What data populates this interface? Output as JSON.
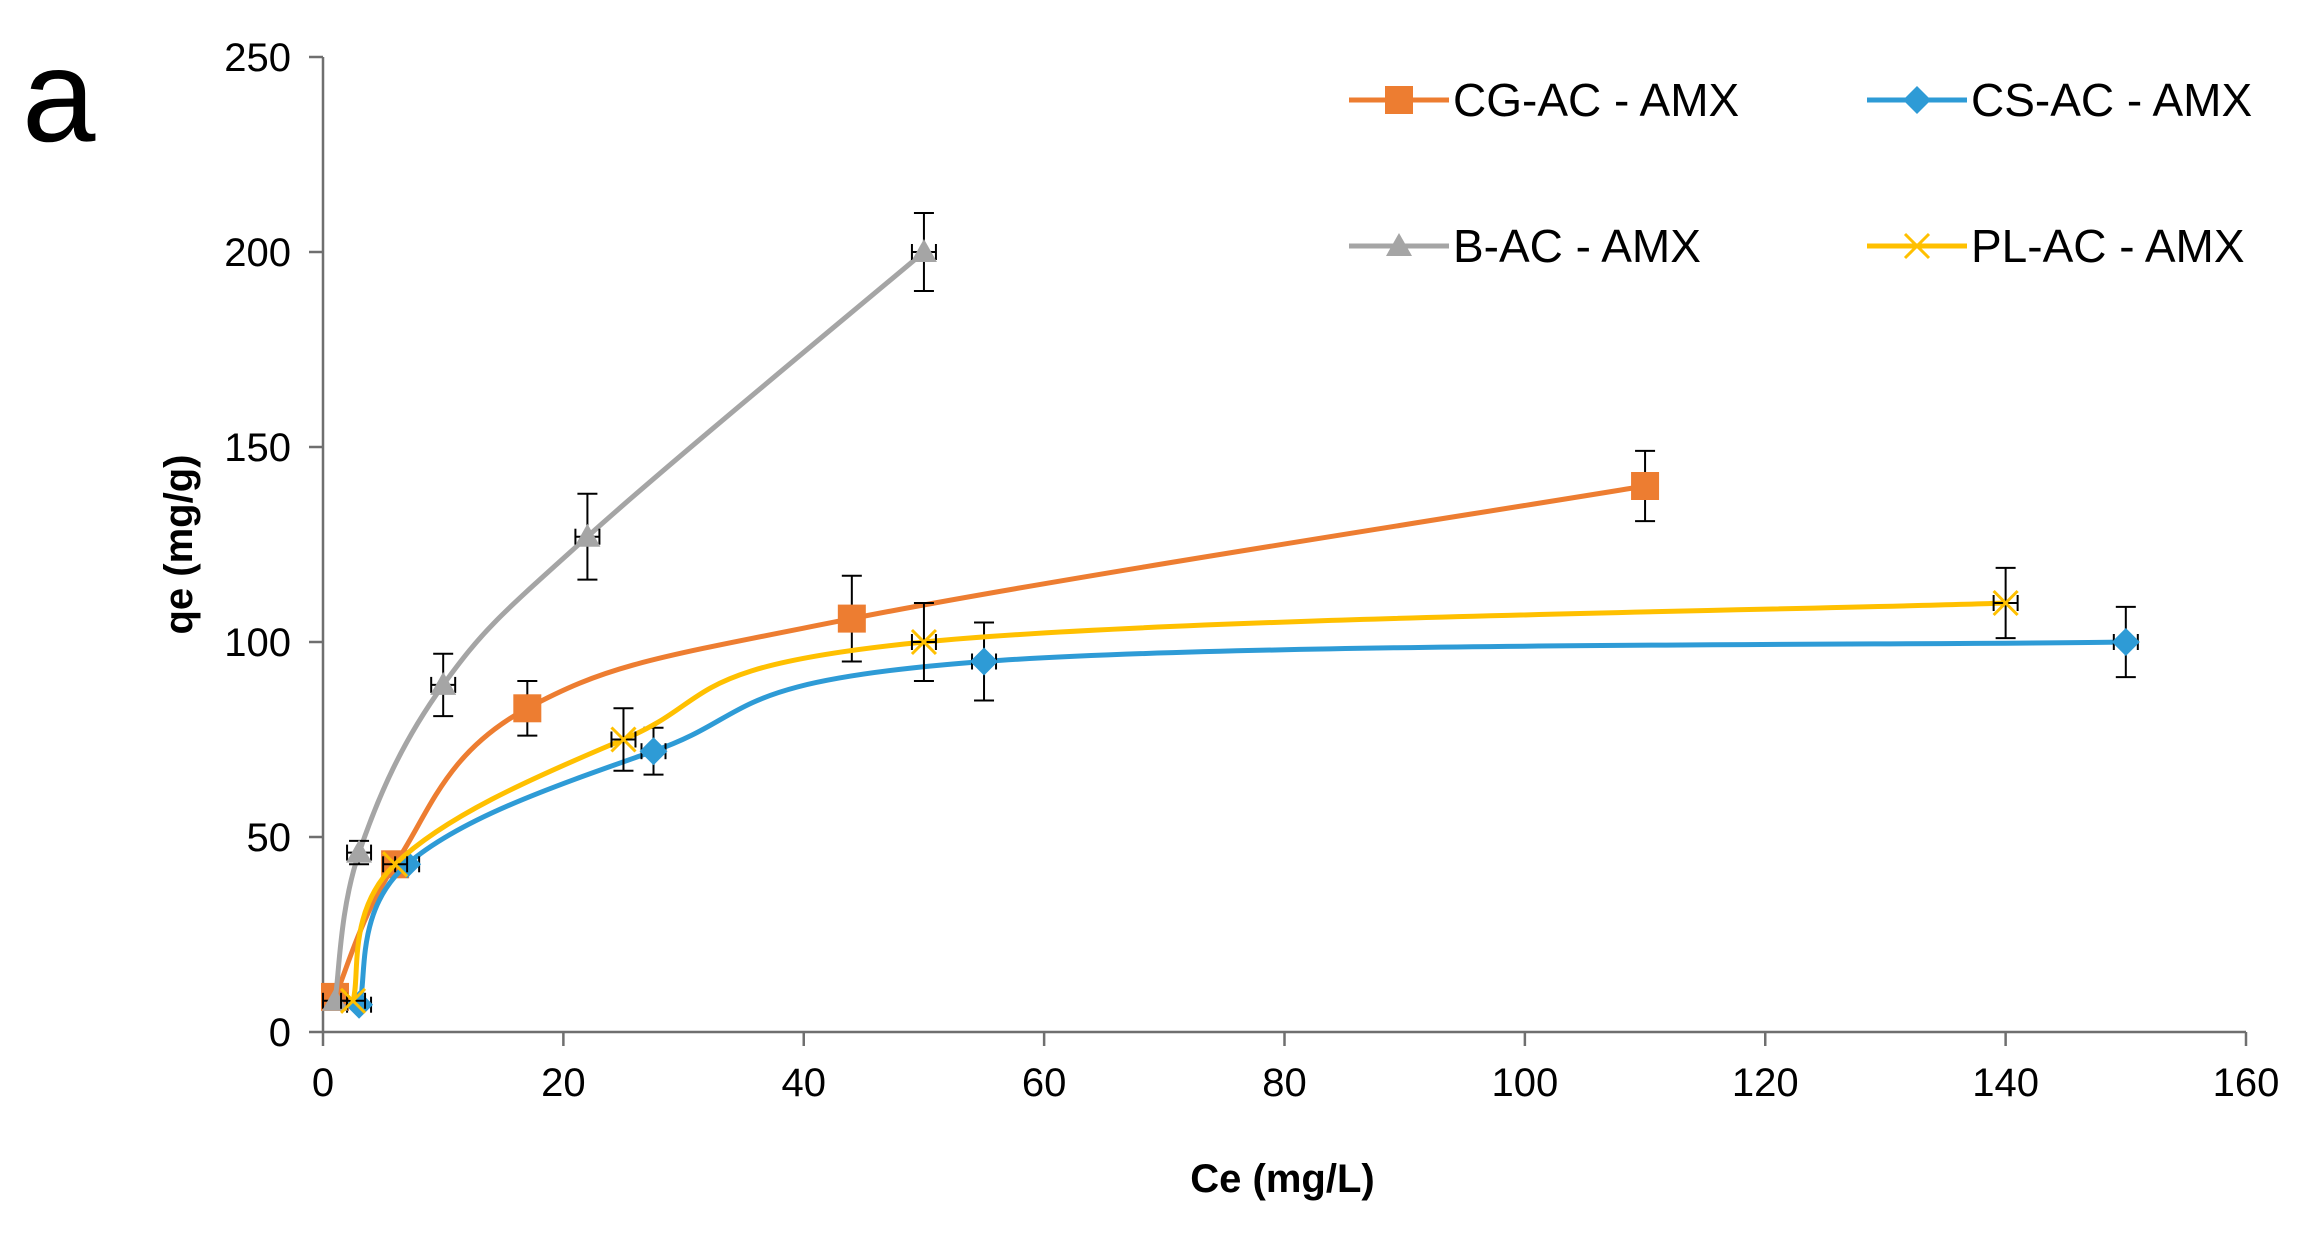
{
  "panel_label": "a",
  "chart_data": {
    "type": "line",
    "title": "",
    "xlabel": "Ce (mg/L)",
    "ylabel": "qe (mg/g)",
    "xlim": [
      0,
      160
    ],
    "ylim": [
      0,
      250
    ],
    "xticks": [
      0,
      20,
      40,
      60,
      80,
      100,
      120,
      140,
      160
    ],
    "yticks": [
      0,
      50,
      100,
      150,
      200,
      250
    ],
    "grid": false,
    "legend": "top-right",
    "smooth": true,
    "series": [
      {
        "name": "CG-AC - AMX",
        "color": "#ED7D31",
        "marker": "square",
        "x": [
          1,
          6,
          17,
          44,
          110
        ],
        "y": [
          9,
          43,
          83,
          106,
          140
        ],
        "y_err": [
          0,
          0,
          7,
          11,
          9
        ]
      },
      {
        "name": "CS-AC - AMX",
        "color": "#2E9BD6",
        "marker": "diamond",
        "x": [
          3,
          7,
          27.5,
          55,
          150
        ],
        "y": [
          7,
          43,
          72,
          95,
          100
        ],
        "y_err": [
          0,
          0,
          6,
          10,
          9
        ]
      },
      {
        "name": "B-AC - AMX",
        "color": "#A5A5A5",
        "marker": "triangle",
        "x": [
          1,
          3,
          10,
          22,
          50
        ],
        "y": [
          8,
          46,
          89,
          127,
          200
        ],
        "y_err": [
          0,
          3,
          8,
          11,
          10
        ]
      },
      {
        "name": "PL-AC - AMX",
        "color": "#FFC000",
        "marker": "x",
        "x": [
          2.5,
          6,
          25,
          50,
          140
        ],
        "y": [
          8,
          43,
          75,
          100,
          110
        ],
        "y_err": [
          0,
          0,
          8,
          10,
          9
        ]
      }
    ]
  }
}
